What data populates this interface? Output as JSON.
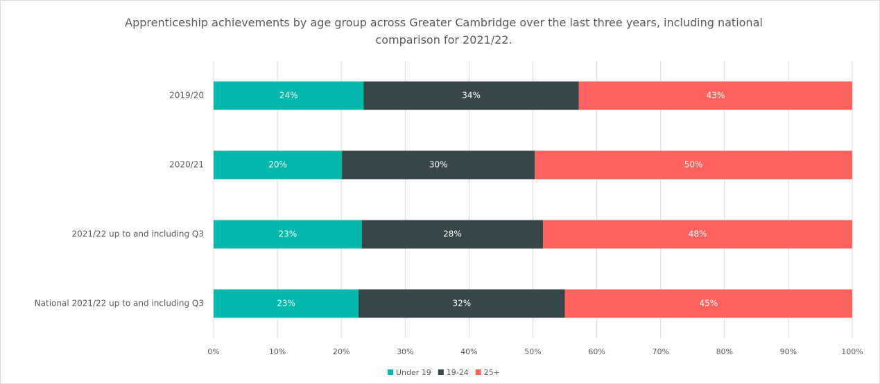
{
  "chart_data": {
    "type": "bar",
    "orientation": "horizontal",
    "stacked": true,
    "title": "Apprenticeship achievements by age group across Greater Cambridge over the last three years, including national comparison for 2021/22.",
    "categories": [
      "2019/20",
      "2020/21",
      "2021/22 up to and including Q3",
      "National 2021/22 up to and including Q3"
    ],
    "series": [
      {
        "name": "Under 19",
        "color": "#01b8aa",
        "values": [
          23.5,
          20.1,
          23.2,
          22.7
        ],
        "value_labels": [
          "24%",
          "20%",
          "23%",
          "23%"
        ]
      },
      {
        "name": "19-24",
        "color": "#374649",
        "values": [
          33.7,
          30.2,
          28.4,
          32.3
        ],
        "value_labels": [
          "34%",
          "30%",
          "28%",
          "32%"
        ]
      },
      {
        "name": "25+",
        "color": "#fd625e",
        "values": [
          42.8,
          49.7,
          48.4,
          45.0
        ],
        "value_labels": [
          "43%",
          "50%",
          "48%",
          "45%"
        ]
      }
    ],
    "xlim": [
      0,
      100
    ],
    "xticks": [
      {
        "value": 0,
        "label": "0%"
      },
      {
        "value": 10,
        "label": "10%"
      },
      {
        "value": 20,
        "label": "20%"
      },
      {
        "value": 30,
        "label": "30%"
      },
      {
        "value": 40,
        "label": "40%"
      },
      {
        "value": 50,
        "label": "50%"
      },
      {
        "value": 60,
        "label": "60%"
      },
      {
        "value": 70,
        "label": "70%"
      },
      {
        "value": 80,
        "label": "80%"
      },
      {
        "value": 90,
        "label": "90%"
      },
      {
        "value": 100,
        "label": "100%"
      }
    ],
    "grid": true,
    "legend": "bottom"
  }
}
